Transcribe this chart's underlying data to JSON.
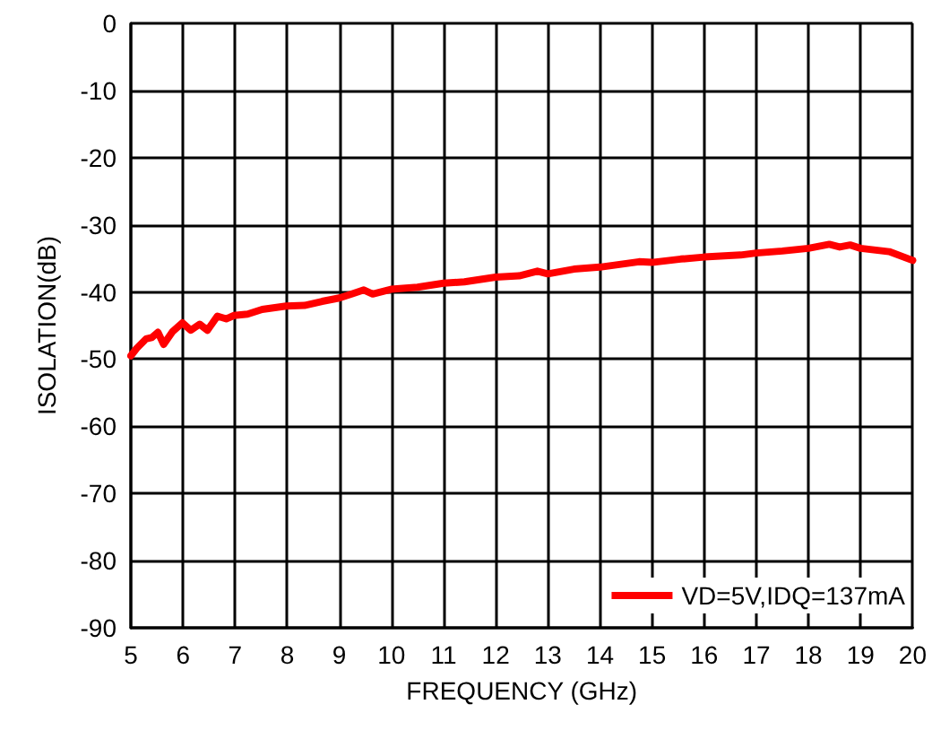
{
  "chart_data": {
    "type": "line",
    "xlabel": "FREQUENCY (GHz)",
    "ylabel": "ISOLATION(dB)",
    "xlim": [
      5,
      20
    ],
    "xticks": [
      5,
      6,
      7,
      8,
      9,
      10,
      11,
      12,
      13,
      14,
      15,
      16,
      17,
      18,
      19,
      20
    ],
    "ylim": [
      -90,
      0
    ],
    "yticks": [
      -90,
      -80,
      -70,
      -60,
      -50,
      -40,
      -30,
      -20,
      -10,
      0
    ],
    "grid": true,
    "legend": "bottom right",
    "marker": "none",
    "line_style": "solid",
    "series": [
      {
        "name": "VD=5V,IDQ=137mA",
        "color": "#ff0000",
        "x": [
          5,
          5.11,
          5.29,
          5.4,
          5.52,
          5.63,
          5.8,
          5.99,
          6.15,
          6.32,
          6.47,
          6.66,
          6.83,
          6.98,
          7.24,
          7.52,
          7.98,
          8.33,
          8.67,
          9,
          9.24,
          9.47,
          9.64,
          9.99,
          10.5,
          11,
          11.4,
          12,
          12.45,
          12.8,
          13,
          13.5,
          14,
          14.75,
          15,
          15.55,
          16,
          16.7,
          17,
          17.5,
          18,
          18.4,
          18.6,
          18.8,
          19,
          19.55,
          20
        ],
        "values": [
          -49.5,
          -48.4,
          -47,
          -46.8,
          -46,
          -47.8,
          -45.9,
          -44.6,
          -45.7,
          -44.8,
          -45.7,
          -43.6,
          -44,
          -43.5,
          -43.3,
          -42.6,
          -42.1,
          -42,
          -41.4,
          -40.9,
          -40.3,
          -39.7,
          -40.3,
          -39.6,
          -39.3,
          -38.7,
          -38.5,
          -37.8,
          -37.6,
          -36.9,
          -37.3,
          -36.6,
          -36.3,
          -35.5,
          -35.6,
          -35.1,
          -34.8,
          -34.5,
          -34.2,
          -33.9,
          -33.5,
          -32.9,
          -33.3,
          -33,
          -33.5,
          -34,
          -35.3
        ]
      }
    ]
  }
}
